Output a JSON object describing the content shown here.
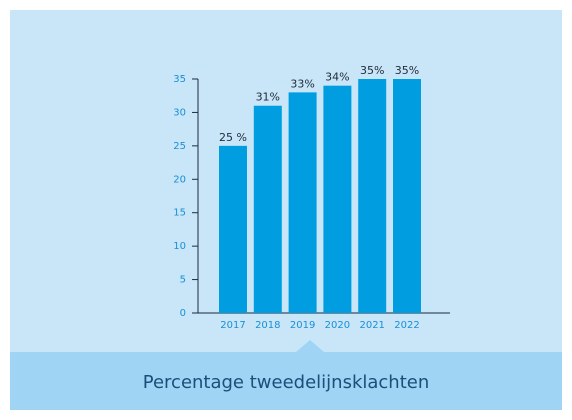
{
  "chart_data": {
    "type": "bar",
    "title": "Percentage tweedelijnsklachten",
    "categories": [
      "2017",
      "2018",
      "2019",
      "2020",
      "2021",
      "2022"
    ],
    "values": [
      25,
      31,
      33,
      34,
      35,
      35
    ],
    "value_labels": [
      "25 %",
      "31%",
      "33%",
      "34%",
      "35%",
      "35%"
    ],
    "color": "#009ee0",
    "ylim": [
      0,
      35
    ],
    "yticks": [
      0,
      5,
      10,
      15,
      20,
      25,
      30,
      35
    ],
    "grid": false
  }
}
